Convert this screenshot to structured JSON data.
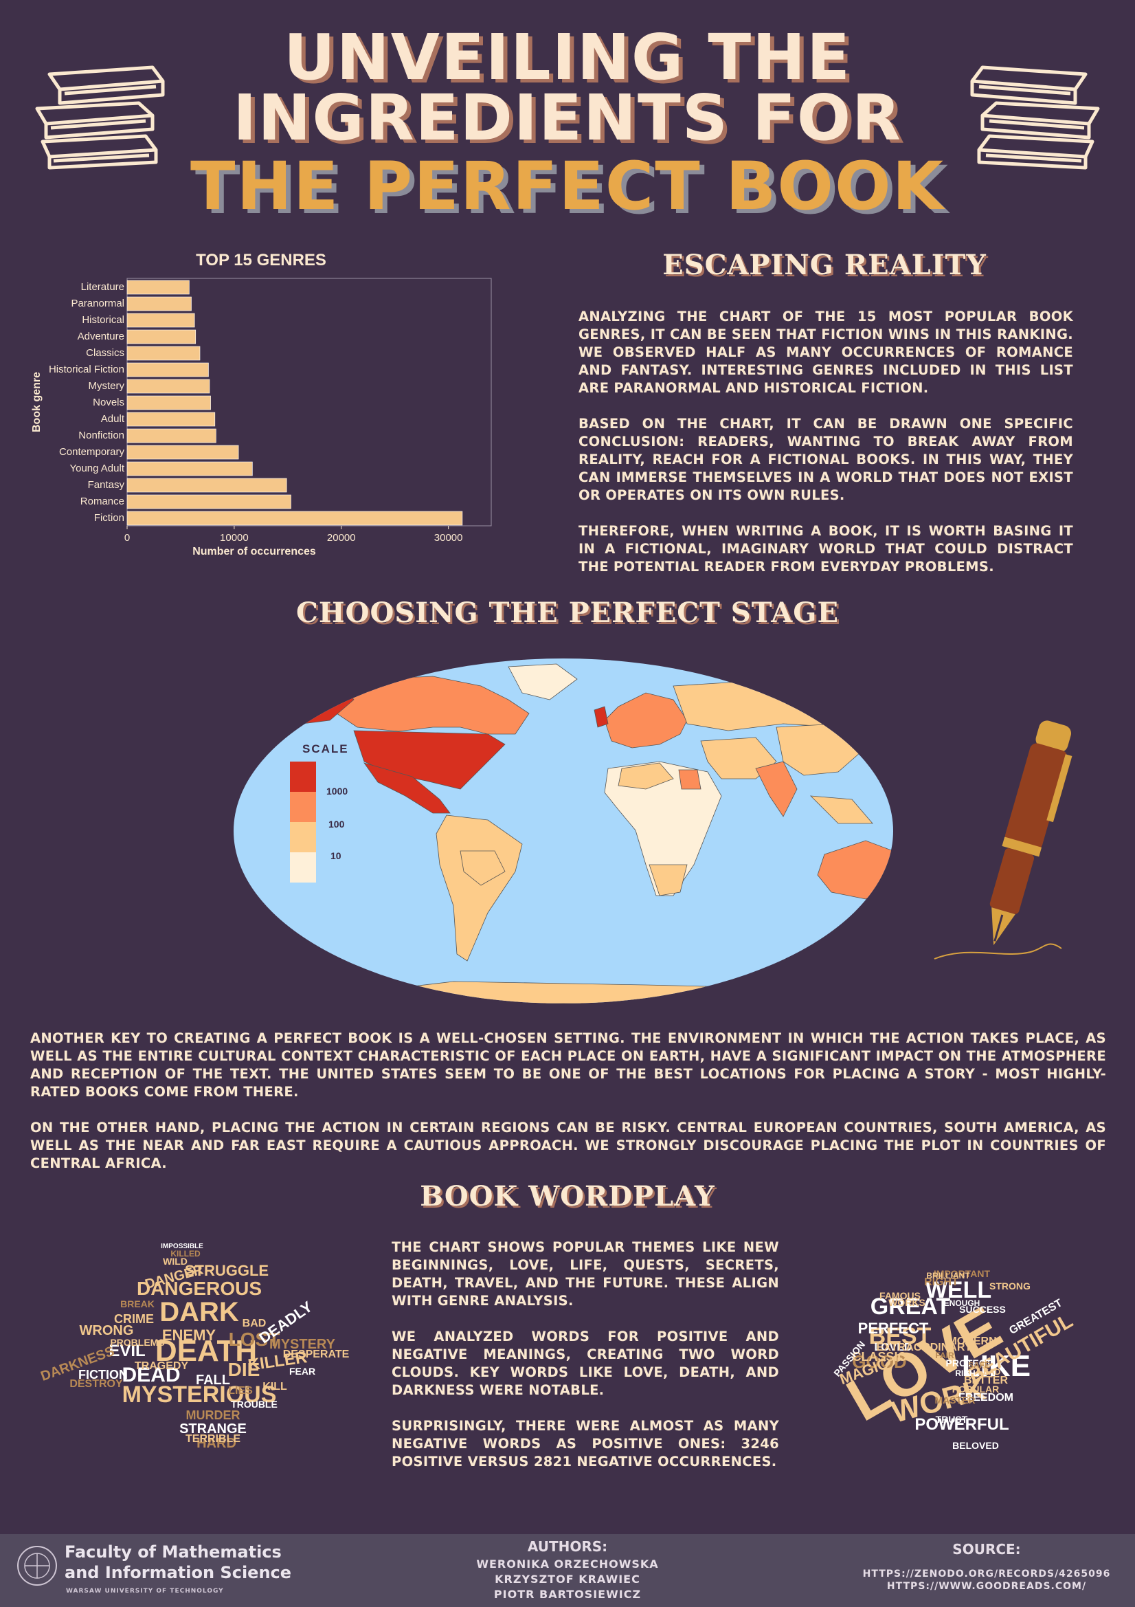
{
  "title": {
    "line1": "UNVEILING THE",
    "line2": "INGREDIENTS FOR",
    "line3": "THE PERFECT BOOK"
  },
  "chart_data": {
    "type": "bar",
    "orientation": "horizontal",
    "title": "TOP 15 GENRES",
    "xlabel": "Number of occurrences",
    "ylabel": "Book genre",
    "xlim": [
      0,
      34000
    ],
    "xticks": [
      "0",
      "10000",
      "20000",
      "30000"
    ],
    "categories": [
      "Literature",
      "Paranormal",
      "Historical",
      "Adventure",
      "Classics",
      "Historical Fiction",
      "Mystery",
      "Novels",
      "Adult",
      "Nonfiction",
      "Contemporary",
      "Young Adult",
      "Fantasy",
      "Romance",
      "Fiction"
    ],
    "values": [
      5800,
      6000,
      6300,
      6400,
      6800,
      7600,
      7700,
      7800,
      8200,
      8300,
      10400,
      11700,
      14900,
      15300,
      31300
    ],
    "bar_color": "#f5c78a",
    "grid": false
  },
  "escaping": {
    "heading": "ESCAPING REALITY",
    "p1": "Analyzing the chart of the 15 most popular book genres, it can be seen that fiction wins in this ranking. We observed half as many occurrences of romance and fantasy. Interesting genres included in this list are paranormal and historical fiction.",
    "p2": "Based on the chart, it can be drawn one specific conclusion: readers, wanting to break away from reality, reach for a fictional books. In this way, they can immerse themselves in a world that does not exist or operates on its own rules.",
    "p3": "Therefore, when writing a book, it is worth basing it in a fictional, imaginary world that could distract the potential reader from everyday problems."
  },
  "stage": {
    "heading": "CHOOSING THE PERFECT STAGE",
    "scale_title": "SCALE",
    "scale_labels": [
      "1000",
      "100",
      "10"
    ],
    "scale_colors": [
      "#d7301f",
      "#fc8d59",
      "#fdcc8a",
      "#fef0d9"
    ],
    "ocean_color": "#a9d8fb",
    "p1": "Another key to creating a perfect book is a well-chosen setting. The environment in which the action takes place, as well as the entire cultural context characteristic of each place on Earth, have a significant impact on the atmosphere and reception of the text. The United States seem to be one of the best locations for placing a story - most highly-rated books come from there.",
    "p2": "On the other hand, placing the action in certain regions can be risky. Central European countries, South America, as well as the Near and Far East require a cautious approach. We strongly discourage placing the plot in countries of Central Africa."
  },
  "wordplay": {
    "heading": "BOOK WORDPLAY",
    "p1": "The chart shows popular themes like new beginnings, love, life, quests, secrets, death, travel, and the future. These align with genre analysis.",
    "p2": "We analyzed words for positive and negative meanings, creating two word clouds. Key words like love, death, and darkness were notable.",
    "p3": "Surprisingly, there were almost as many negative words as positive ones: 3246 positive versus 2821 negative occurrences.",
    "negative_words": [
      "DEATH",
      "DARK",
      "MYSTERIOUS",
      "DANGEROUS",
      "DEAD",
      "EVIL",
      "LOST",
      "DIE",
      "KILLER",
      "MURDER",
      "STRANGE",
      "MYSTERY",
      "CRIME",
      "DANGER",
      "WRONG",
      "STRUGGLE",
      "DEADLY",
      "FALL",
      "HARD",
      "TERRIBLE",
      "DESPERATE",
      "DARKNESS",
      "FICTION",
      "DESTROY",
      "TRAGEDY",
      "ENEMY",
      "BAD",
      "KILL",
      "TROUBLE",
      "FEAR",
      "LIES",
      "PROBLEMS",
      "WILD",
      "KILLED",
      "IMPOSSIBLE",
      "BREAK"
    ],
    "positive_words": [
      "LOVE",
      "LIKE",
      "WORK",
      "BEST",
      "GREAT",
      "WELL",
      "BEAUTIFUL",
      "POWERFUL",
      "GOOD",
      "MAGIC",
      "PERFECT",
      "RIGHT",
      "MODERN",
      "GREATEST",
      "BETTER",
      "CLASSIC",
      "LOVED",
      "FREEDOM",
      "EXTRAORDINARY",
      "TRUST",
      "MASTER",
      "POPULAR",
      "BELOVED",
      "IMPORTANT",
      "BRILLIANT",
      "SUCCESS",
      "STRONG",
      "FAMOUS",
      "PASSION",
      "ENOUGH",
      "WORKS",
      "PROTECT",
      "SAFE",
      "LEAD",
      "RICH",
      "FAIR"
    ]
  },
  "footer": {
    "faculty_line1": "Faculty of Mathematics",
    "faculty_line2": "and Information Science",
    "university": "WARSAW UNIVERSITY OF TECHNOLOGY",
    "authors_label": "AUTHORS:",
    "authors": [
      "WERONIKA ORZECHOWSKA",
      "KRZYSZTOF KRAWIEC",
      "PIOTR BARTOSIEWICZ"
    ],
    "source_label": "SOURCE:",
    "sources": [
      "HTTPS://ZENODO.ORG/RECORDS/4265096",
      "HTTPS://WWW.GOODREADS.COM/"
    ]
  }
}
